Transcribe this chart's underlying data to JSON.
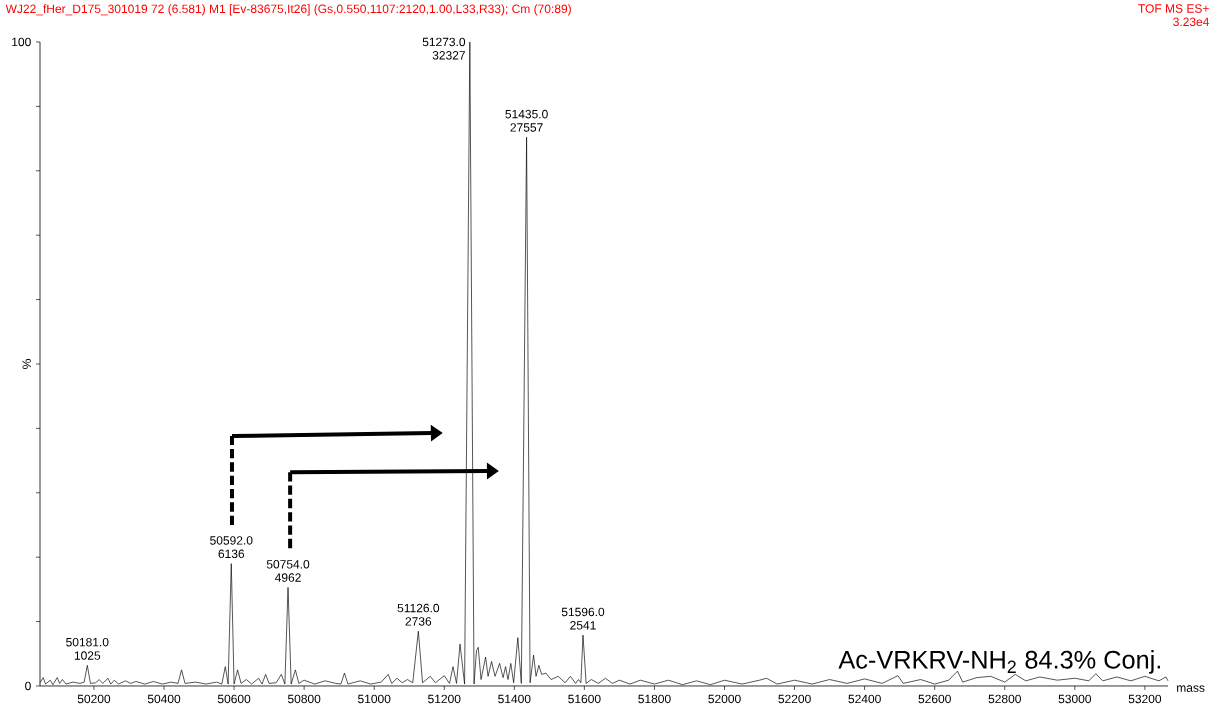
{
  "chart_data": {
    "type": "line",
    "title": "WJ22_fHer_D175_301019  72 (6.581) M1 [Ev-83675,It26] (Gs,0.550,1107:2120,1.00,L33,R33); Cm (70:89)",
    "subtitle": "TOF MS ES+",
    "xlabel": "mass",
    "ylabel": "%",
    "xlim": [
      50046,
      53266
    ],
    "ylim": [
      0,
      100
    ],
    "xticks": [
      50200,
      50400,
      50600,
      50800,
      51000,
      51200,
      51400,
      51600,
      51800,
      52000,
      52200,
      52400,
      52600,
      52800,
      53000,
      53200
    ],
    "yticks": [
      0,
      {
        "value": 10,
        "label": null
      },
      {
        "value": 20,
        "label": null
      },
      {
        "value": 30,
        "label": null
      },
      {
        "value": 40,
        "label": null
      },
      {
        "value": 50,
        "label": null
      },
      {
        "value": 60,
        "label": null
      },
      {
        "value": 70,
        "label": null
      },
      {
        "value": 80,
        "label": null
      },
      {
        "value": 90,
        "label": null
      },
      100
    ],
    "series": [
      {
        "color": "#000000",
        "x": [
          50046,
          50055,
          50062,
          50075,
          50083,
          50095,
          50102,
          50110,
          50120,
          50140,
          50160,
          50172,
          50181,
          50190,
          50205,
          50215,
          50225,
          50240,
          50248,
          50258,
          50270,
          50290,
          50305,
          50320,
          50345,
          50370,
          50395,
          50420,
          50440,
          50450,
          50460,
          50490,
          50520,
          50550,
          50565,
          50575,
          50583,
          50592,
          50600,
          50610,
          50620,
          50635,
          50650,
          50670,
          50680,
          50690,
          50700,
          50720,
          50735,
          50745,
          50754,
          50763,
          50775,
          50785,
          50800,
          50830,
          50860,
          50890,
          50905,
          50915,
          50925,
          50960,
          50990,
          51020,
          51040,
          51050,
          51065,
          51080,
          51095,
          51110,
          51126,
          51138,
          51160,
          51175,
          51200,
          51215,
          51225,
          51235,
          51245,
          51258,
          51273,
          51285,
          51292,
          51297,
          51305,
          51318,
          51325,
          51335,
          51345,
          51358,
          51368,
          51375,
          51382,
          51390,
          51398,
          51410,
          51420,
          51435,
          51445,
          51455,
          51462,
          51470,
          51478,
          51490,
          51505,
          51525,
          51545,
          51560,
          51575,
          51583,
          51590,
          51596,
          51605,
          51620,
          51640,
          51660,
          51680,
          51700,
          51730,
          51760,
          51800,
          51840,
          51880,
          51920,
          51960,
          52000,
          52050,
          52100,
          52120,
          52150,
          52200,
          52250,
          52300,
          52350,
          52400,
          52450,
          52495,
          52510,
          52560,
          52600,
          52640,
          52665,
          52680,
          52720,
          52760,
          52800,
          52830,
          52860,
          52900,
          52950,
          53000,
          53040,
          53060,
          53080,
          53120,
          53160,
          53200,
          53240,
          53260,
          53266
        ],
        "values": [
          0.5,
          1.3,
          0.3,
          0.9,
          0.2,
          1.3,
          0.4,
          1.0,
          0.3,
          0.6,
          0.4,
          0.6,
          3.2,
          0.4,
          0.5,
          1.0,
          0.4,
          1.2,
          0.3,
          0.9,
          0.3,
          0.8,
          0.4,
          0.7,
          0.3,
          0.7,
          0.3,
          0.6,
          0.4,
          2.5,
          0.4,
          0.6,
          0.3,
          0.6,
          0.3,
          3.0,
          0.3,
          19.0,
          0.3,
          2.5,
          0.4,
          1.0,
          0.3,
          1.2,
          0.3,
          1.8,
          0.4,
          0.5,
          1.8,
          0.3,
          15.3,
          0.3,
          2.5,
          0.4,
          0.9,
          0.3,
          0.8,
          0.4,
          0.3,
          2.0,
          0.3,
          0.8,
          0.3,
          0.6,
          1.8,
          0.4,
          1.2,
          0.5,
          1.0,
          0.5,
          8.5,
          0.5,
          1.5,
          0.5,
          1.6,
          0.4,
          3.0,
          0.4,
          6.5,
          0.3,
          100,
          0.3,
          5.5,
          6.0,
          1.0,
          4.5,
          1.5,
          3.8,
          1.5,
          3.5,
          1.3,
          3.0,
          1.0,
          3.5,
          0.5,
          7.5,
          0.4,
          85.2,
          0.5,
          4.8,
          1.5,
          3.2,
          1.8,
          2.0,
          1.0,
          1.5,
          0.5,
          1.5,
          0.4,
          1.0,
          0.5,
          7.9,
          0.4,
          1.0,
          0.4,
          1.2,
          0.4,
          0.9,
          0.3,
          0.9,
          0.3,
          0.9,
          0.2,
          0.8,
          0.2,
          0.9,
          0.3,
          0.9,
          1.2,
          0.3,
          0.9,
          0.3,
          1.0,
          0.4,
          1.1,
          0.4,
          1.6,
          0.4,
          1.0,
          0.3,
          0.9,
          2.3,
          0.6,
          1.3,
          1.5,
          0.6,
          1.8,
          0.8,
          1.4,
          0.9,
          1.2,
          0.8,
          1.9,
          0.8,
          1.4,
          0.8,
          1.5,
          0.8,
          1.4,
          0.8
        ]
      }
    ],
    "annotations": [
      "3.23e4",
      "Ac-VRKRV-NH$_{2}$ 84.3% Conj.",
      {
        "text": "50181.0",
        "x": 50181,
        "y": 3.2
      },
      {
        "text": "1025",
        "x": 50181,
        "y": 3.2
      },
      {
        "text": "50592.0",
        "x": 50592,
        "y": 19.0
      },
      {
        "text": "6136",
        "x": 50592,
        "y": 19.0
      },
      {
        "text": "50754.0",
        "x": 50754,
        "y": 15.3
      },
      {
        "text": "4962",
        "x": 50754,
        "y": 15.3
      },
      {
        "text": "51126.0",
        "x": 51126,
        "y": 8.5
      },
      {
        "text": "2736",
        "x": 51126,
        "y": 8.5
      },
      {
        "text": "51273.0",
        "x": 51273,
        "y": 100
      },
      {
        "text": "32327",
        "x": 51273,
        "y": 100
      },
      {
        "text": "51435.0",
        "x": 51435,
        "y": 85.2
      },
      {
        "text": "27557",
        "x": 51435,
        "y": 85.2
      },
      {
        "text": "51596.0",
        "x": 51596,
        "y": 7.9
      },
      {
        "text": "2541",
        "x": 51596,
        "y": 7.9
      }
    ]
  }
}
